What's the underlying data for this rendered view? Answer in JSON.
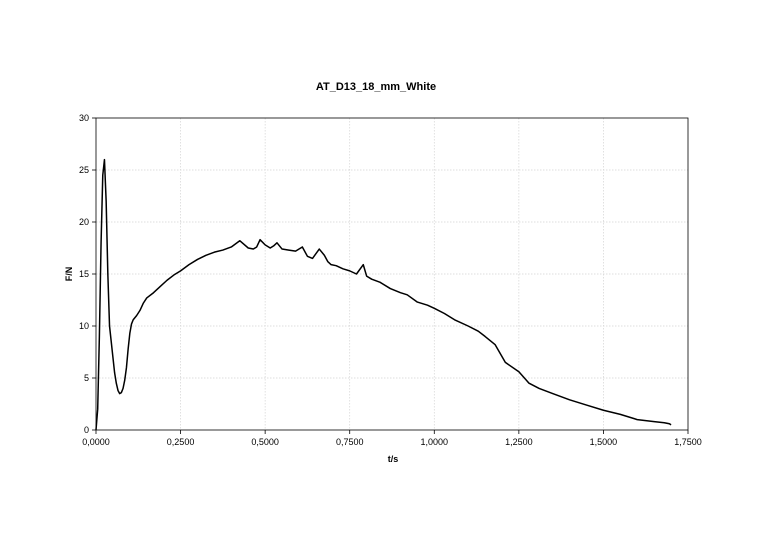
{
  "chart_data": {
    "type": "line",
    "title": "AT_D13_18_mm_White",
    "xlabel": "t/s",
    "ylabel": "F/N",
    "xlim": [
      0,
      1.75
    ],
    "ylim": [
      0,
      30
    ],
    "grid": true,
    "x_ticks": [
      0,
      0.25,
      0.5,
      0.75,
      1.0,
      1.25,
      1.5,
      1.75
    ],
    "x_tick_labels": [
      "0,0000",
      "0,2500",
      "0,5000",
      "0,7500",
      "1,0000",
      "1,2500",
      "1,5000",
      "1,7500"
    ],
    "y_ticks": [
      0,
      5,
      10,
      15,
      20,
      25,
      30
    ],
    "y_tick_labels": [
      "0",
      "5",
      "10",
      "15",
      "20",
      "25",
      "30"
    ],
    "series": [
      {
        "x": [
          0.0,
          0.005,
          0.01,
          0.015,
          0.02,
          0.025,
          0.03,
          0.035,
          0.04,
          0.045,
          0.05,
          0.055,
          0.06,
          0.065,
          0.07,
          0.075,
          0.08,
          0.085,
          0.09,
          0.095,
          0.1,
          0.105,
          0.11,
          0.12,
          0.13,
          0.14,
          0.15,
          0.17,
          0.19,
          0.21,
          0.23,
          0.25,
          0.275,
          0.3,
          0.325,
          0.35,
          0.375,
          0.4,
          0.425,
          0.45,
          0.465,
          0.475,
          0.485,
          0.5,
          0.515,
          0.525,
          0.535,
          0.55,
          0.57,
          0.59,
          0.61,
          0.625,
          0.64,
          0.66,
          0.675,
          0.685,
          0.695,
          0.71,
          0.73,
          0.75,
          0.77,
          0.79,
          0.8,
          0.815,
          0.84,
          0.87,
          0.9,
          0.92,
          0.95,
          0.98,
          1.0,
          1.03,
          1.06,
          1.1,
          1.13,
          1.15,
          1.18,
          1.21,
          1.25,
          1.28,
          1.31,
          1.35,
          1.4,
          1.45,
          1.5,
          1.55,
          1.6,
          1.65,
          1.68,
          1.695,
          1.7
        ],
        "y": [
          0.0,
          2.0,
          9.0,
          18.0,
          24.5,
          26.0,
          22.0,
          15.0,
          10.0,
          8.5,
          7.0,
          5.5,
          4.5,
          3.8,
          3.5,
          3.6,
          4.0,
          4.8,
          6.0,
          7.8,
          9.3,
          10.2,
          10.6,
          11.0,
          11.5,
          12.2,
          12.7,
          13.2,
          13.8,
          14.4,
          14.9,
          15.3,
          15.9,
          16.4,
          16.8,
          17.1,
          17.3,
          17.6,
          18.2,
          17.5,
          17.4,
          17.6,
          18.3,
          17.8,
          17.5,
          17.7,
          18.0,
          17.4,
          17.3,
          17.2,
          17.6,
          16.7,
          16.5,
          17.4,
          16.8,
          16.2,
          15.9,
          15.8,
          15.5,
          15.3,
          15.0,
          15.9,
          14.8,
          14.5,
          14.2,
          13.6,
          13.2,
          13.0,
          12.3,
          12.0,
          11.7,
          11.2,
          10.6,
          10.0,
          9.5,
          9.0,
          8.2,
          6.5,
          5.6,
          4.5,
          4.0,
          3.5,
          2.9,
          2.4,
          1.9,
          1.5,
          1.0,
          0.8,
          0.7,
          0.6,
          0.5
        ]
      }
    ]
  }
}
